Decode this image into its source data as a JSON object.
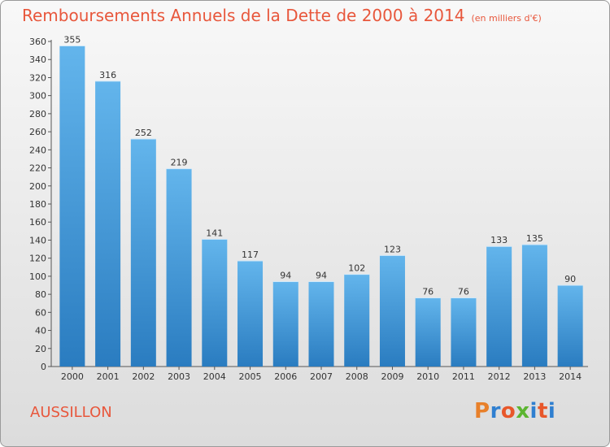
{
  "header": {
    "title": "Remboursements Annuels de la Dette de 2000 à 2014",
    "unit": "(en milliers d'€)"
  },
  "footer": {
    "town": "AUSSILLON",
    "logo": "Proxiti"
  },
  "colors": {
    "accent": "#e8573c",
    "bar_top": "#63b5ec",
    "bar_bottom": "#2a7cc0",
    "logo": [
      "#e8802a",
      "#2f7fd0",
      "#e8572a",
      "#5cb531",
      "#2f7fd0",
      "#e8572a",
      "#2f7fd0"
    ]
  },
  "chart_data": {
    "type": "bar",
    "title": "Remboursements Annuels de la Dette de 2000 à 2014",
    "xlabel": "",
    "ylabel": "(en milliers d'€)",
    "categories": [
      "2000",
      "2001",
      "2002",
      "2003",
      "2004",
      "2005",
      "2006",
      "2007",
      "2008",
      "2009",
      "2010",
      "2011",
      "2012",
      "2013",
      "2014"
    ],
    "values": [
      355,
      316,
      252,
      219,
      141,
      117,
      94,
      94,
      102,
      123,
      76,
      76,
      133,
      135,
      90
    ],
    "ylim": [
      0,
      360
    ],
    "ytick_step": 20,
    "grid": false,
    "legend": "none"
  }
}
